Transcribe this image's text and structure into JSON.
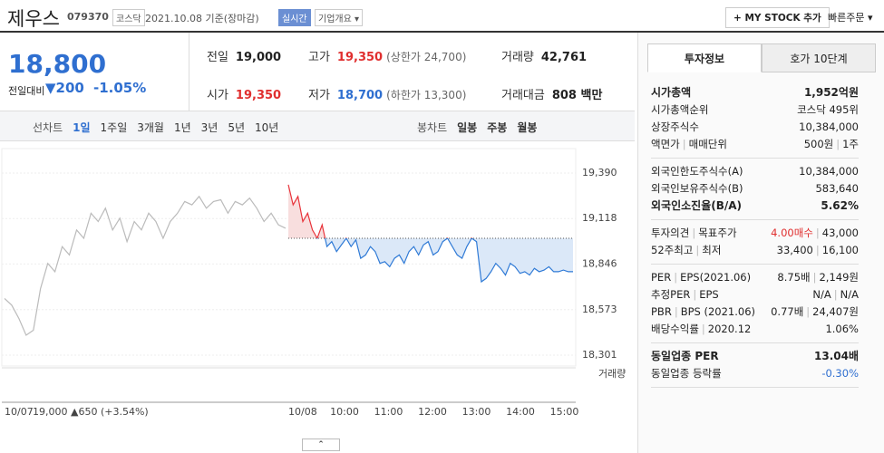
{
  "header": {
    "name": "제우스",
    "code": "079370",
    "market": "코스닥",
    "date": "2021.10.08 기준(장마감)",
    "realtime": "실시간",
    "overview": "기업개요",
    "mystock": "+ MY STOCK 추가",
    "quick_order": "빠른주문"
  },
  "price": {
    "current": "18,800",
    "change_label": "전일대비",
    "change": "▼200",
    "change_rate": "-1.05%"
  },
  "summary": [
    {
      "label": "전일",
      "value": "19,000"
    },
    {
      "label": "고가",
      "value": "19,350",
      "note": "(상한가 24,700)",
      "tone": "up"
    },
    {
      "label": "거래량",
      "value": "42,761"
    },
    {
      "label": "시가",
      "value": "19,350",
      "tone": "up"
    },
    {
      "label": "저가",
      "value": "18,700",
      "note": "(하한가 13,300)",
      "tone": "down"
    },
    {
      "label": "거래대금",
      "value": "808 백만"
    }
  ],
  "chart_tabs": {
    "line_label": "선차트",
    "line": [
      "1일",
      "1주일",
      "3개월",
      "1년",
      "3년",
      "5년",
      "10년"
    ],
    "candle_label": "봉차트",
    "candle": [
      "일봉",
      "주봉",
      "월봉"
    ]
  },
  "chart_data": {
    "type": "line",
    "ylim": [
      18301,
      19390
    ],
    "yticks": [
      {
        "value": 19390,
        "label": "19,390"
      },
      {
        "value": 19118,
        "label": "19,118"
      },
      {
        "value": 18846,
        "label": "18,846"
      },
      {
        "value": 18573,
        "label": "18,573"
      },
      {
        "value": 18301,
        "label": "18,301"
      }
    ],
    "base": 19000,
    "up_color": "#e8333a",
    "down_color": "#2f7ad6",
    "xticks": [
      "10:00",
      "11:00",
      "12:00",
      "13:00",
      "14:00",
      "15:00"
    ],
    "prev_summary": "19,000 ▲650 (+3.54%)",
    "volume_label": "거래량",
    "series": [
      {
        "name": "10/07",
        "color": "#bbbbbb",
        "values": [
          18640,
          18600,
          18520,
          18420,
          18450,
          18700,
          18850,
          18800,
          18950,
          18900,
          19050,
          19000,
          19150,
          19100,
          19180,
          19050,
          19120,
          18980,
          19100,
          19050,
          19150,
          19100,
          19000,
          19100,
          19150,
          19220,
          19200,
          19250,
          19180,
          19220,
          19230,
          19150,
          19220,
          19200,
          19240,
          19180,
          19100,
          19150,
          19080,
          19060
        ]
      },
      {
        "name": "10/08",
        "color": "#e8333a",
        "values": [
          19320,
          19200,
          19250,
          19100,
          19150,
          19050,
          19000,
          19080,
          18950,
          18980,
          18920,
          18960,
          19000,
          18950,
          18990,
          18880,
          18900,
          18950,
          18920,
          18850,
          18860,
          18830,
          18880,
          18900,
          18850,
          18920,
          18950,
          18900,
          18960,
          18980,
          18900,
          18920,
          18980,
          19000,
          18950,
          18900,
          18880,
          18950,
          19000,
          18980,
          18740,
          18760,
          18800,
          18850,
          18820,
          18780,
          18850,
          18830,
          18790,
          18800,
          18780,
          18820,
          18800,
          18810,
          18830,
          18800,
          18800,
          18810,
          18800,
          18800
        ]
      }
    ]
  },
  "info_tabs": [
    "투자정보",
    "호가 10단계"
  ],
  "info_groups": [
    [
      {
        "label": [
          "시가총액"
        ],
        "value": [
          "1,952억원"
        ],
        "emphasis": true
      },
      {
        "label": [
          "시가총액순위"
        ],
        "value": [
          "코스닥 495위"
        ]
      },
      {
        "label": [
          "상장주식수"
        ],
        "value": [
          "10,384,000"
        ]
      },
      {
        "label": [
          "액면가",
          "매매단위"
        ],
        "value": [
          "500원",
          "1주"
        ]
      }
    ],
    [
      {
        "label": [
          "외국인한도주식수(A)"
        ],
        "value": [
          "10,384,000"
        ]
      },
      {
        "label": [
          "외국인보유주식수(B)"
        ],
        "value": [
          "583,640"
        ]
      },
      {
        "label": [
          "외국인소진율(B/A)"
        ],
        "value": [
          "5.62%"
        ],
        "emphasis": true
      }
    ],
    [
      {
        "label": [
          "투자의견",
          "목표주가"
        ],
        "value": [
          "4.00매수",
          "43,000"
        ],
        "tone": "up"
      },
      {
        "label": [
          "52주최고",
          "최저"
        ],
        "value": [
          "33,400",
          "16,100"
        ]
      }
    ],
    [
      {
        "label": [
          "PER",
          "EPS(2021.06)"
        ],
        "value": [
          "8.75배",
          "2,149원"
        ]
      },
      {
        "label": [
          "추정PER",
          "EPS"
        ],
        "value": [
          "N/A",
          "N/A"
        ]
      },
      {
        "label": [
          "PBR",
          "BPS (2021.06)"
        ],
        "value": [
          "0.77배",
          "24,407원"
        ]
      },
      {
        "label": [
          "배당수익률",
          "2020.12"
        ],
        "value": [
          "1.06%"
        ]
      }
    ],
    [
      {
        "label": [
          "동일업종 PER"
        ],
        "value": [
          "13.04배"
        ],
        "emphasis": true
      },
      {
        "label": [
          "동일업종 등락률"
        ],
        "value": [
          "-0.30%"
        ],
        "tone": "down"
      }
    ]
  ]
}
